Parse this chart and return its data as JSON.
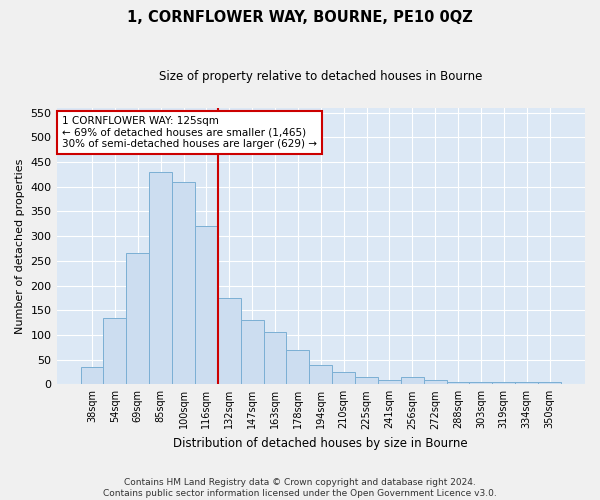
{
  "title": "1, CORNFLOWER WAY, BOURNE, PE10 0QZ",
  "subtitle": "Size of property relative to detached houses in Bourne",
  "xlabel": "Distribution of detached houses by size in Bourne",
  "ylabel": "Number of detached properties",
  "categories": [
    "38sqm",
    "54sqm",
    "69sqm",
    "85sqm",
    "100sqm",
    "116sqm",
    "132sqm",
    "147sqm",
    "163sqm",
    "178sqm",
    "194sqm",
    "210sqm",
    "225sqm",
    "241sqm",
    "256sqm",
    "272sqm",
    "288sqm",
    "303sqm",
    "319sqm",
    "334sqm",
    "350sqm"
  ],
  "values": [
    35,
    135,
    265,
    430,
    410,
    320,
    175,
    130,
    105,
    70,
    40,
    25,
    15,
    8,
    15,
    8,
    5,
    5,
    5,
    5,
    5
  ],
  "bar_color": "#ccddf0",
  "bar_edge_color": "#7bafd4",
  "ylim": [
    0,
    560
  ],
  "yticks": [
    0,
    50,
    100,
    150,
    200,
    250,
    300,
    350,
    400,
    450,
    500,
    550
  ],
  "property_line_index": 6,
  "property_line_color": "#cc0000",
  "annotation_text_line1": "1 CORNFLOWER WAY: 125sqm",
  "annotation_text_line2": "← 69% of detached houses are smaller (1,465)",
  "annotation_text_line3": "30% of semi-detached houses are larger (629) →",
  "annotation_box_color": "#ffffff",
  "annotation_box_edge_color": "#cc0000",
  "footer_line1": "Contains HM Land Registry data © Crown copyright and database right 2024.",
  "footer_line2": "Contains public sector information licensed under the Open Government Licence v3.0.",
  "fig_bg_color": "#f0f0f0",
  "ax_bg_color": "#dce8f5",
  "grid_color": "#ffffff"
}
